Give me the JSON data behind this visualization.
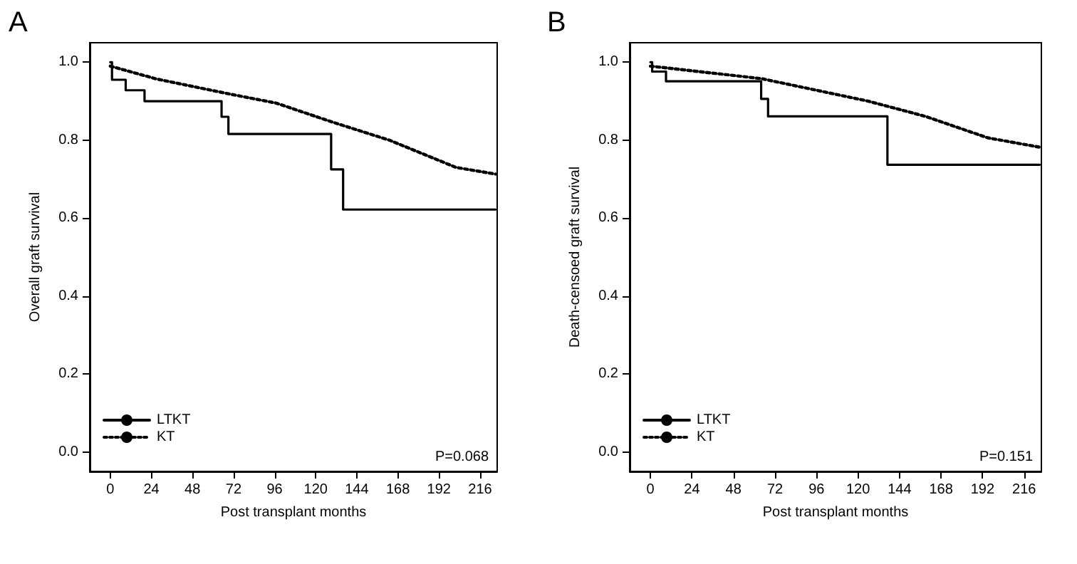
{
  "chart_data": [
    {
      "type": "step",
      "title": "A",
      "xlabel": "Post transplant months",
      "ylabel": "Overall graft survival",
      "annotations": [
        "P=0.068"
      ],
      "series": [
        {
          "name": "LTKT",
          "type": "step",
          "color": "#000000",
          "line_style": "solid",
          "x": [
            0,
            1,
            9,
            20,
            65,
            69,
            129,
            136,
            225
          ],
          "values": [
            1.0,
            0.955,
            0.928,
            0.9,
            0.86,
            0.816,
            0.725,
            0.622,
            0.622
          ]
        },
        {
          "name": "KT",
          "type": "line",
          "color": "#000000",
          "line_style": "dotted",
          "x": [
            0,
            27,
            69,
            97,
            130,
            163,
            202,
            225
          ],
          "values": [
            0.99,
            0.957,
            0.919,
            0.895,
            0.846,
            0.8,
            0.73,
            0.713
          ]
        }
      ],
      "xlim": [
        -12,
        226
      ],
      "xticks": [
        0,
        24,
        48,
        72,
        96,
        120,
        144,
        168,
        192,
        216
      ],
      "ylim": [
        -0.05,
        1.05
      ],
      "yticks": [
        {
          "value": 0,
          "label": "0.0"
        },
        {
          "value": 0.2,
          "label": "0.2"
        },
        {
          "value": 0.4,
          "label": "0.4"
        },
        {
          "value": 0.6,
          "label": "0.6"
        },
        {
          "value": 0.8,
          "label": "0.8"
        },
        {
          "value": 1,
          "label": "1.0"
        }
      ],
      "grid": false,
      "legend": "bottom left",
      "marker": "none"
    },
    {
      "type": "step",
      "title": "B",
      "xlabel": "Post transplant months",
      "ylabel": "Death-censoed graft survival",
      "annotations": [
        "P=0.151"
      ],
      "series": [
        {
          "name": "LTKT",
          "type": "step",
          "color": "#000000",
          "line_style": "solid",
          "x": [
            0,
            1,
            9,
            64,
            68,
            137,
            225
          ],
          "values": [
            1.0,
            0.976,
            0.951,
            0.906,
            0.861,
            0.737,
            0.737
          ]
        },
        {
          "name": "KT",
          "type": "line",
          "color": "#000000",
          "line_style": "dotted",
          "x": [
            0,
            64,
            126,
            159,
            195,
            225
          ],
          "values": [
            0.99,
            0.958,
            0.9,
            0.861,
            0.806,
            0.782
          ]
        }
      ],
      "xlim": [
        -12,
        226
      ],
      "xticks": [
        0,
        24,
        48,
        72,
        96,
        120,
        144,
        168,
        192,
        216
      ],
      "ylim": [
        -0.05,
        1.05
      ],
      "yticks": [
        {
          "value": 0,
          "label": "0.0"
        },
        {
          "value": 0.2,
          "label": "0.2"
        },
        {
          "value": 0.4,
          "label": "0.4"
        },
        {
          "value": 0.6,
          "label": "0.6"
        },
        {
          "value": 0.8,
          "label": "0.8"
        },
        {
          "value": 1,
          "label": "1.0"
        }
      ],
      "grid": false,
      "legend": "bottom left",
      "marker": "none"
    }
  ]
}
